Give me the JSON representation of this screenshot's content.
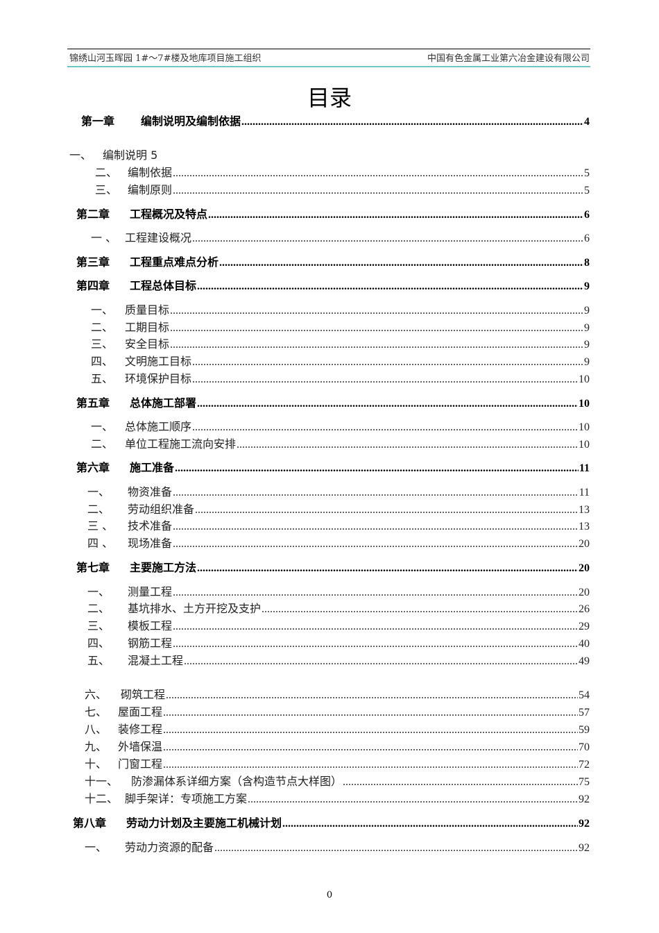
{
  "header": {
    "left": "锦绣山河玉晖园 1#～7#楼及地库项目施工组织",
    "right": "中国有色金属工业第六冶金建设有限公司"
  },
  "title": "目录",
  "toc": [
    {
      "num": "第一章",
      "text": "编制说明及编制依据",
      "page": "4",
      "bold": true
    },
    {
      "num": "一、",
      "text": "编制说明  5",
      "page": "",
      "bold": false,
      "nodots": true
    },
    {
      "num": "二、",
      "text": "编制依据",
      "page": "5"
    },
    {
      "num": "三、",
      "text": "编制原则",
      "page": "5"
    },
    {
      "num": "第二章",
      "text": "工程概况及特点",
      "page": "6",
      "bold": true
    },
    {
      "num": "一 、",
      "text": "工程建设概况",
      "page": "6"
    },
    {
      "num": "第三章",
      "text": "工程重点难点分析",
      "page": "8",
      "bold": true
    },
    {
      "num": "第四章",
      "text": "工程总体目标",
      "page": "9",
      "bold": true
    },
    {
      "num": "一、",
      "text": "质量目标",
      "page": "9"
    },
    {
      "num": "二、",
      "text": "工期目标",
      "page": "9"
    },
    {
      "num": "三、",
      "text": "安全目标",
      "page": "9"
    },
    {
      "num": "四、",
      "text": "文明施工目标",
      "page": "9"
    },
    {
      "num": "五、",
      "text": "环境保护目标",
      "page": "10"
    },
    {
      "num": "第五章",
      "text": "总体施工部署",
      "page": "10",
      "bold": true
    },
    {
      "num": "一、",
      "text": "总体施工顺序",
      "page": "10"
    },
    {
      "num": "二、",
      "text": "单位工程施工流向安排",
      "page": "10"
    },
    {
      "num": "第六章",
      "text": "施工准备",
      "page": "11",
      "bold": true
    },
    {
      "num": "一、",
      "text": "物资准备",
      "page": "11"
    },
    {
      "num": "二、",
      "text": "劳动组织准备",
      "page": "13"
    },
    {
      "num": "三 、",
      "text": "技术准备",
      "page": "13"
    },
    {
      "num": "四 、",
      "text": "现场准备",
      "page": "20"
    },
    {
      "num": "第七章",
      "text": "主要施工方法",
      "page": "20",
      "bold": true
    },
    {
      "num": "一、",
      "text": "测量工程",
      "page": "20"
    },
    {
      "num": "二、",
      "text": "基坑排水、土方开挖及支护",
      "page": "26"
    },
    {
      "num": "三、",
      "text": "模板工程",
      "page": "29"
    },
    {
      "num": "四、",
      "text": "钢筋工程",
      "page": "40"
    },
    {
      "num": "五、",
      "text": "混凝土工程",
      "page": "49"
    },
    {
      "num": "六、",
      "text": "砌筑工程",
      "page": "54"
    },
    {
      "num": "七、",
      "text": "屋面工程",
      "page": "57"
    },
    {
      "num": "八、",
      "text": "装修工程",
      "page": "59"
    },
    {
      "num": "九、",
      "text": "外墙保温",
      "page": "70"
    },
    {
      "num": "十、",
      "text": "门窗工程",
      "page": "72"
    },
    {
      "num": "十一、",
      "text": "防渗漏体系详细方案（含构造节点大样图）",
      "page": "75"
    },
    {
      "num": "十二、",
      "text": "脚手架详：专项施工方案",
      "page": "92"
    },
    {
      "num": "第八章",
      "text": "劳动力计划及主要施工机械计划",
      "page": "92",
      "bold": true
    },
    {
      "num": "一、",
      "text": "劳动力资源的配备",
      "page": "92"
    }
  ],
  "footer": {
    "page_number": "0"
  }
}
